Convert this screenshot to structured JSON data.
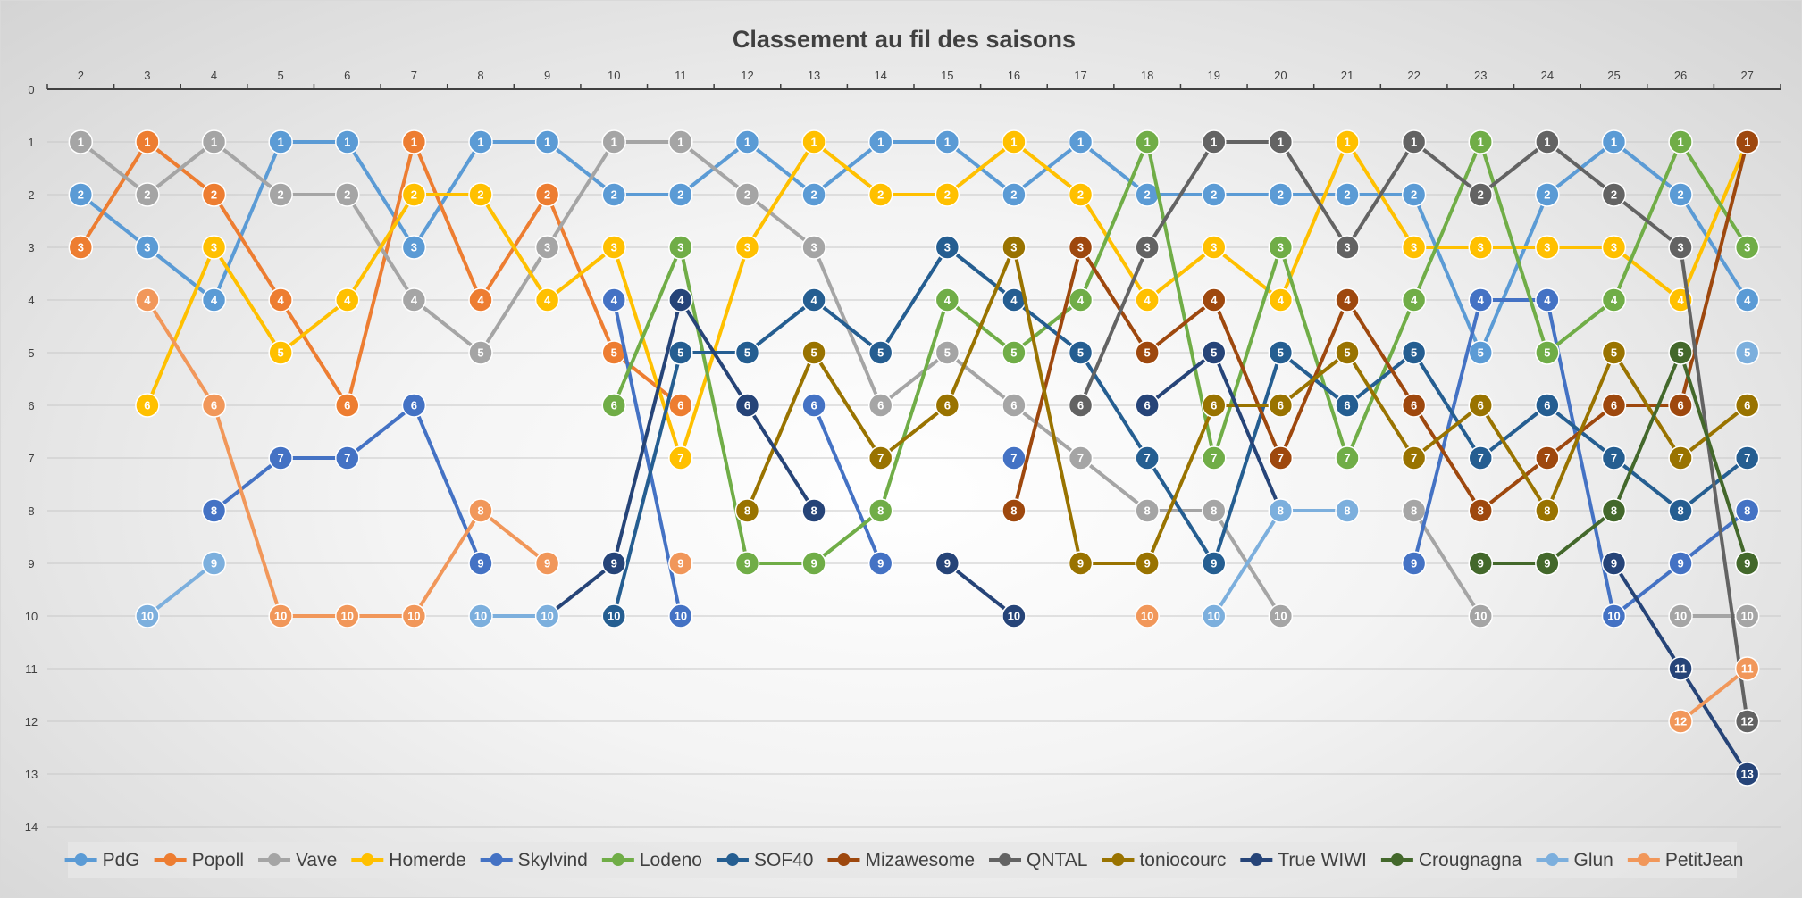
{
  "chart_data": {
    "type": "line",
    "title": "Classement au fil des saisons",
    "xlabel": "",
    "ylabel": "",
    "x": [
      2,
      3,
      4,
      5,
      6,
      7,
      8,
      9,
      10,
      11,
      12,
      13,
      14,
      15,
      16,
      17,
      18,
      19,
      20,
      21,
      22,
      23,
      24,
      25,
      26,
      27
    ],
    "x_axis_position": "top",
    "y_ticks": [
      0,
      1,
      2,
      3,
      4,
      5,
      6,
      7,
      8,
      9,
      10,
      11,
      12,
      13,
      14
    ],
    "ylim": [
      0,
      14
    ],
    "y_reversed": true,
    "grid": true,
    "legend_position": "bottom",
    "data_labels": true,
    "series": [
      {
        "name": "PdG",
        "color": "#5b9bd5",
        "values": [
          2,
          3,
          4,
          1,
          1,
          3,
          1,
          1,
          2,
          2,
          1,
          2,
          1,
          1,
          2,
          1,
          2,
          2,
          2,
          2,
          2,
          5,
          2,
          1,
          2,
          4
        ]
      },
      {
        "name": "Popoll",
        "color": "#ed7d31",
        "values": [
          3,
          1,
          2,
          4,
          6,
          1,
          4,
          2,
          5,
          6,
          null,
          null,
          null,
          null,
          null,
          null,
          null,
          null,
          null,
          null,
          null,
          null,
          null,
          null,
          null,
          null
        ]
      },
      {
        "name": "Vave",
        "color": "#a5a5a5",
        "values": [
          1,
          2,
          1,
          2,
          2,
          4,
          5,
          3,
          1,
          1,
          2,
          3,
          6,
          5,
          6,
          7,
          8,
          8,
          10,
          null,
          8,
          10,
          null,
          null,
          10,
          10
        ]
      },
      {
        "name": "Homerde",
        "color": "#ffc000",
        "values": [
          null,
          6,
          3,
          5,
          4,
          2,
          2,
          4,
          3,
          7,
          3,
          1,
          2,
          2,
          1,
          2,
          4,
          3,
          4,
          1,
          3,
          3,
          3,
          3,
          4,
          1
        ]
      },
      {
        "name": "Skylvind",
        "color": "#4472c4",
        "values": [
          null,
          null,
          8,
          7,
          7,
          6,
          9,
          null,
          4,
          10,
          null,
          6,
          9,
          null,
          7,
          null,
          null,
          null,
          null,
          null,
          9,
          4,
          4,
          10,
          9,
          8
        ]
      },
      {
        "name": "Lodeno",
        "color": "#70ad47",
        "values": [
          null,
          null,
          null,
          null,
          null,
          null,
          null,
          null,
          6,
          3,
          9,
          9,
          8,
          4,
          5,
          4,
          1,
          7,
          3,
          7,
          4,
          1,
          5,
          4,
          1,
          3
        ]
      },
      {
        "name": "SOF40",
        "color": "#255e91",
        "values": [
          null,
          null,
          null,
          null,
          null,
          null,
          null,
          null,
          10,
          5,
          5,
          4,
          5,
          3,
          4,
          5,
          7,
          9,
          5,
          6,
          5,
          7,
          6,
          7,
          8,
          7
        ]
      },
      {
        "name": "Mizawesome",
        "color": "#9e480e",
        "values": [
          null,
          null,
          null,
          null,
          null,
          null,
          null,
          null,
          null,
          null,
          null,
          null,
          null,
          null,
          8,
          3,
          5,
          4,
          7,
          4,
          6,
          8,
          7,
          6,
          6,
          1
        ]
      },
      {
        "name": "QNTAL",
        "color": "#636363",
        "values": [
          null,
          null,
          null,
          null,
          null,
          null,
          null,
          null,
          null,
          null,
          null,
          null,
          null,
          null,
          null,
          6,
          3,
          1,
          1,
          3,
          1,
          2,
          1,
          2,
          3,
          12
        ]
      },
      {
        "name": "toniocourc",
        "color": "#997300",
        "values": [
          null,
          null,
          null,
          null,
          null,
          null,
          null,
          null,
          null,
          null,
          8,
          5,
          7,
          6,
          3,
          9,
          9,
          6,
          6,
          5,
          7,
          6,
          8,
          5,
          7,
          6
        ]
      },
      {
        "name": "True WIWI",
        "color": "#264478",
        "values": [
          null,
          null,
          null,
          null,
          null,
          null,
          null,
          10,
          9,
          4,
          6,
          8,
          null,
          9,
          10,
          null,
          6,
          5,
          8,
          null,
          null,
          null,
          null,
          9,
          11,
          13
        ]
      },
      {
        "name": "Crougnagna",
        "color": "#43682b",
        "values": [
          null,
          null,
          null,
          null,
          null,
          null,
          null,
          null,
          null,
          null,
          null,
          null,
          null,
          null,
          null,
          null,
          null,
          null,
          null,
          null,
          null,
          9,
          9,
          8,
          5,
          9
        ]
      },
      {
        "name": "Glun",
        "color": "#7cafdd",
        "values": [
          null,
          10,
          9,
          null,
          null,
          null,
          10,
          10,
          null,
          null,
          null,
          null,
          null,
          null,
          null,
          null,
          null,
          10,
          8,
          8,
          null,
          null,
          null,
          null,
          null,
          5
        ]
      },
      {
        "name": "PetitJean",
        "color": "#f1975a",
        "values": [
          null,
          4,
          6,
          10,
          10,
          10,
          8,
          9,
          null,
          9,
          null,
          null,
          null,
          null,
          null,
          null,
          10,
          null,
          null,
          null,
          null,
          null,
          null,
          null,
          12,
          11
        ]
      }
    ]
  }
}
